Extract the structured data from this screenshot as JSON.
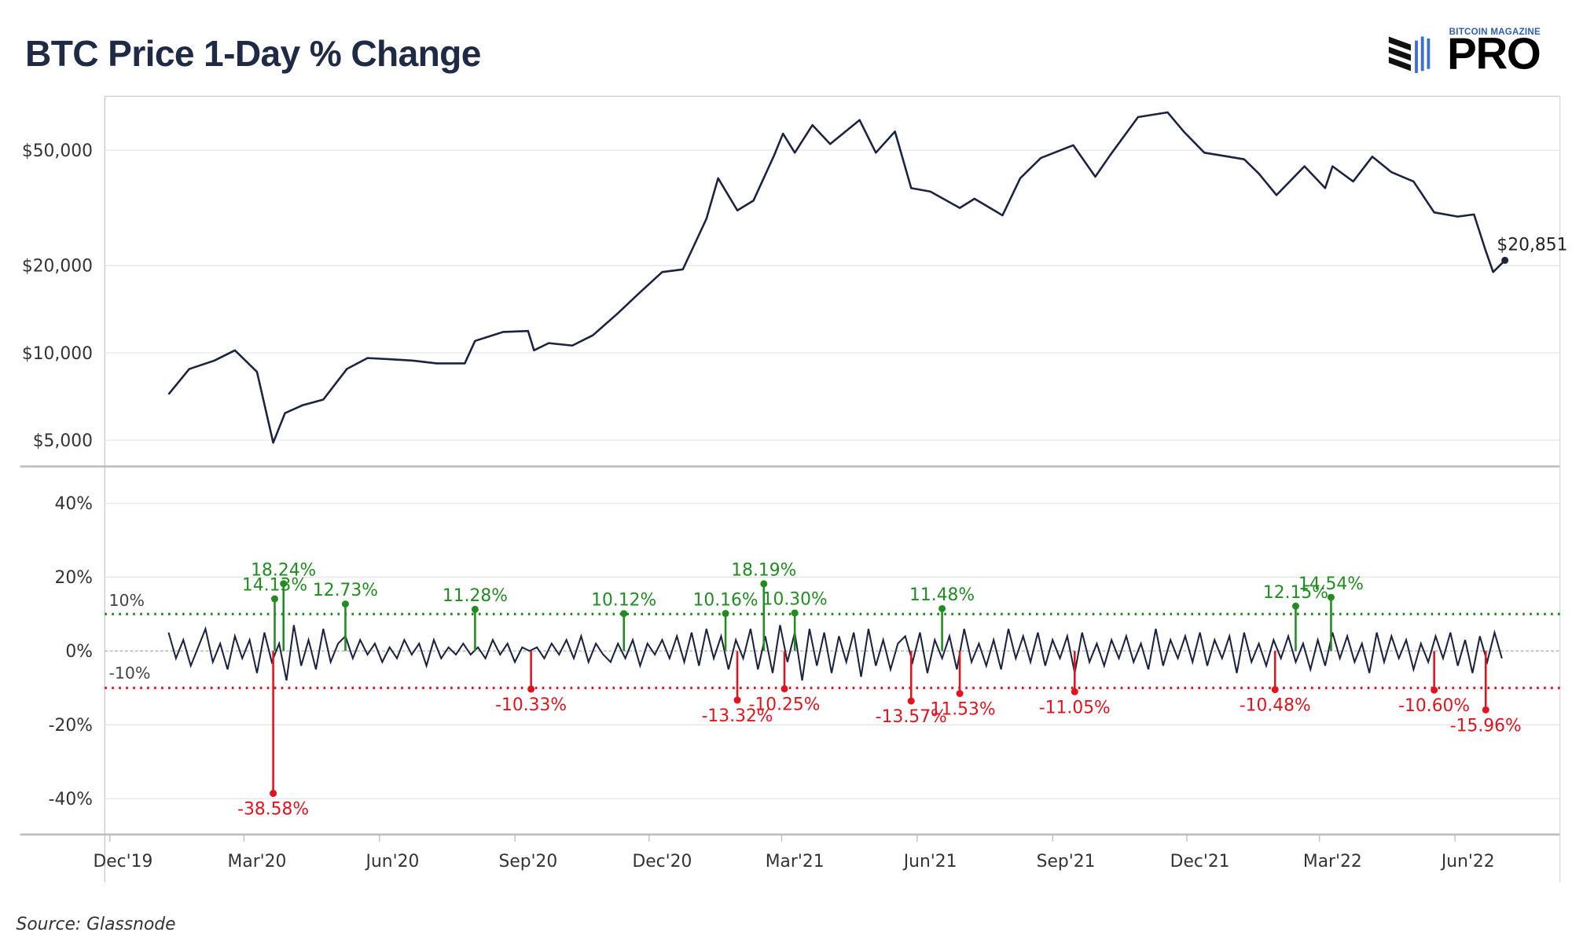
{
  "header": {
    "title": "BTC Price 1-Day % Change"
  },
  "logo": {
    "top_text": "BITCOIN MAGAZINE",
    "main_text": "PRO"
  },
  "footer": {
    "source": "Source: Glassnode"
  },
  "colors": {
    "line": "#1c2340",
    "positive": "#228b22",
    "negative": "#e0141e",
    "grid": "#e6e6e6"
  },
  "chart_data": [
    {
      "type": "line",
      "panel": "top",
      "yscale": "log",
      "y_ticks": [
        5000,
        10000,
        20000,
        50000
      ],
      "y_tick_labels": [
        "$5,000",
        "$10,000",
        "$20,000",
        "$50,000"
      ],
      "last_value_label": "$20,851",
      "x_tick_labels": [
        "Dec'19",
        "Mar'20",
        "Jun'20",
        "Sep'20",
        "Dec'20",
        "Mar'21",
        "Jun'21",
        "Sep'21",
        "Dec'21",
        "Mar'22",
        "Jun'22"
      ],
      "x_ticks": [
        "2019-12-01",
        "2020-03-01",
        "2020-06-01",
        "2020-09-01",
        "2020-12-01",
        "2021-03-01",
        "2021-06-01",
        "2021-09-01",
        "2021-12-01",
        "2022-03-01",
        "2022-06-01"
      ],
      "grid": true,
      "points": [
        [
          "2020-01-01",
          7200
        ],
        [
          "2020-01-15",
          8800
        ],
        [
          "2020-02-01",
          9400
        ],
        [
          "2020-02-15",
          10200
        ],
        [
          "2020-03-01",
          8600
        ],
        [
          "2020-03-12",
          4900
        ],
        [
          "2020-03-20",
          6200
        ],
        [
          "2020-04-01",
          6600
        ],
        [
          "2020-04-15",
          6900
        ],
        [
          "2020-05-01",
          8800
        ],
        [
          "2020-05-15",
          9600
        ],
        [
          "2020-06-01",
          9500
        ],
        [
          "2020-06-15",
          9400
        ],
        [
          "2020-07-01",
          9200
        ],
        [
          "2020-07-20",
          9200
        ],
        [
          "2020-07-27",
          11000
        ],
        [
          "2020-08-15",
          11800
        ],
        [
          "2020-09-01",
          11900
        ],
        [
          "2020-09-05",
          10200
        ],
        [
          "2020-09-15",
          10800
        ],
        [
          "2020-10-01",
          10600
        ],
        [
          "2020-10-15",
          11500
        ],
        [
          "2020-11-01",
          13700
        ],
        [
          "2020-11-15",
          16000
        ],
        [
          "2020-12-01",
          19000
        ],
        [
          "2020-12-15",
          19400
        ],
        [
          "2020-12-31",
          29000
        ],
        [
          "2021-01-08",
          40000
        ],
        [
          "2021-01-21",
          31000
        ],
        [
          "2021-02-01",
          33500
        ],
        [
          "2021-02-15",
          48000
        ],
        [
          "2021-02-21",
          57000
        ],
        [
          "2021-03-01",
          49000
        ],
        [
          "2021-03-13",
          61000
        ],
        [
          "2021-03-25",
          52500
        ],
        [
          "2021-04-14",
          63500
        ],
        [
          "2021-04-25",
          49000
        ],
        [
          "2021-05-08",
          58000
        ],
        [
          "2021-05-19",
          37000
        ],
        [
          "2021-06-01",
          36000
        ],
        [
          "2021-06-21",
          31600
        ],
        [
          "2021-07-01",
          34000
        ],
        [
          "2021-07-20",
          29800
        ],
        [
          "2021-08-01",
          40000
        ],
        [
          "2021-08-15",
          47000
        ],
        [
          "2021-09-06",
          52000
        ],
        [
          "2021-09-21",
          40500
        ],
        [
          "2021-10-01",
          48000
        ],
        [
          "2021-10-20",
          65000
        ],
        [
          "2021-11-09",
          67500
        ],
        [
          "2021-11-20",
          58000
        ],
        [
          "2021-12-04",
          49000
        ],
        [
          "2021-12-15",
          48000
        ],
        [
          "2021-12-31",
          46500
        ],
        [
          "2022-01-10",
          41500
        ],
        [
          "2022-01-22",
          35000
        ],
        [
          "2022-02-10",
          44000
        ],
        [
          "2022-02-24",
          37000
        ],
        [
          "2022-03-01",
          44000
        ],
        [
          "2022-03-15",
          39000
        ],
        [
          "2022-03-28",
          47500
        ],
        [
          "2022-04-10",
          42000
        ],
        [
          "2022-04-25",
          39000
        ],
        [
          "2022-05-09",
          30500
        ],
        [
          "2022-05-25",
          29500
        ],
        [
          "2022-06-05",
          30000
        ],
        [
          "2022-06-13",
          22500
        ],
        [
          "2022-06-18",
          19000
        ],
        [
          "2022-06-26",
          20851
        ]
      ]
    },
    {
      "type": "line",
      "panel": "bottom",
      "ylim": [
        -45,
        45
      ],
      "y_ticks": [
        -40,
        -20,
        0,
        20,
        40
      ],
      "y_tick_labels": [
        "-40%",
        "-20%",
        "0%",
        "20%",
        "40%"
      ],
      "thresholds": [
        {
          "value": 10,
          "label": "10%"
        },
        {
          "value": -10,
          "label": "-10%"
        }
      ],
      "grid": true,
      "series_start": "2020-01-01",
      "series_step_days": 5,
      "values": [
        5,
        -2,
        3,
        -4,
        1,
        6,
        -3,
        2,
        -5,
        4,
        -2,
        3,
        -6,
        5,
        -3,
        2,
        -8,
        7,
        -4,
        3,
        -5,
        6,
        -3,
        2,
        4,
        -2,
        3,
        -1,
        2,
        -3,
        1,
        -2,
        3,
        -1,
        2,
        -4,
        3,
        -2,
        1,
        -1,
        2,
        -1,
        1,
        -2,
        3,
        -1,
        2,
        -3,
        1,
        0,
        1,
        -2,
        2,
        -1,
        3,
        -2,
        4,
        -3,
        2,
        -1,
        -3,
        2,
        -2,
        3,
        -4,
        2,
        -1,
        3,
        -2,
        4,
        -3,
        5,
        -4,
        6,
        -2,
        4,
        -5,
        3,
        -2,
        6,
        -5,
        4,
        -6,
        7,
        -3,
        5,
        -8,
        6,
        -4,
        5,
        -6,
        4,
        -3,
        5,
        -7,
        6,
        -4,
        3,
        -5,
        2,
        4,
        -3,
        5,
        -6,
        3,
        -2,
        4,
        -5,
        6,
        -3,
        2,
        -4,
        3,
        -5,
        6,
        -2,
        4,
        -3,
        5,
        -4,
        3,
        -2,
        4,
        -6,
        5,
        -3,
        2,
        -4,
        3,
        -2,
        4,
        -3,
        2,
        -5,
        6,
        -4,
        3,
        -2,
        4,
        -3,
        5,
        -4,
        3,
        -2,
        4,
        -6,
        5,
        -3,
        2,
        -4,
        3,
        -2,
        4,
        -3,
        2,
        -5,
        3,
        -4,
        5,
        -2,
        4,
        -3,
        2,
        -6,
        5,
        -3,
        4,
        -2,
        3,
        -5,
        2,
        -3,
        4,
        -2,
        5,
        -4,
        3,
        -6,
        4,
        -3,
        5,
        -2
      ],
      "annotations": [
        {
          "date": "2020-03-12",
          "value": -38.58,
          "label": "-38.58%"
        },
        {
          "date": "2020-03-13",
          "value": 14.13,
          "label": "14.13%"
        },
        {
          "date": "2020-03-19",
          "value": 18.24,
          "label": "18.24%"
        },
        {
          "date": "2020-04-30",
          "value": 12.73,
          "label": "12.73%"
        },
        {
          "date": "2020-07-27",
          "value": 11.28,
          "label": "11.28%"
        },
        {
          "date": "2020-09-03",
          "value": -10.33,
          "label": "-10.33%"
        },
        {
          "date": "2020-11-05",
          "value": 10.12,
          "label": "10.12%"
        },
        {
          "date": "2021-01-13",
          "value": 10.16,
          "label": "10.16%"
        },
        {
          "date": "2021-01-21",
          "value": -13.32,
          "label": "-13.32%"
        },
        {
          "date": "2021-02-08",
          "value": 18.19,
          "label": "18.19%"
        },
        {
          "date": "2021-02-22",
          "value": -10.25,
          "label": "-10.25%"
        },
        {
          "date": "2021-03-01",
          "value": 10.3,
          "label": "10.30%"
        },
        {
          "date": "2021-05-19",
          "value": -13.57,
          "label": "-13.57%"
        },
        {
          "date": "2021-06-09",
          "value": 11.48,
          "label": "11.48%"
        },
        {
          "date": "2021-06-21",
          "value": -11.53,
          "label": "-11.53%"
        },
        {
          "date": "2021-09-07",
          "value": -11.05,
          "label": "-11.05%"
        },
        {
          "date": "2022-01-21",
          "value": -10.48,
          "label": "-10.48%"
        },
        {
          "date": "2022-02-04",
          "value": 12.15,
          "label": "12.15%"
        },
        {
          "date": "2022-02-28",
          "value": 14.54,
          "label": "14.54%"
        },
        {
          "date": "2022-05-09",
          "value": -10.6,
          "label": "-10.60%"
        },
        {
          "date": "2022-06-13",
          "value": -15.96,
          "label": "-15.96%"
        }
      ]
    }
  ]
}
